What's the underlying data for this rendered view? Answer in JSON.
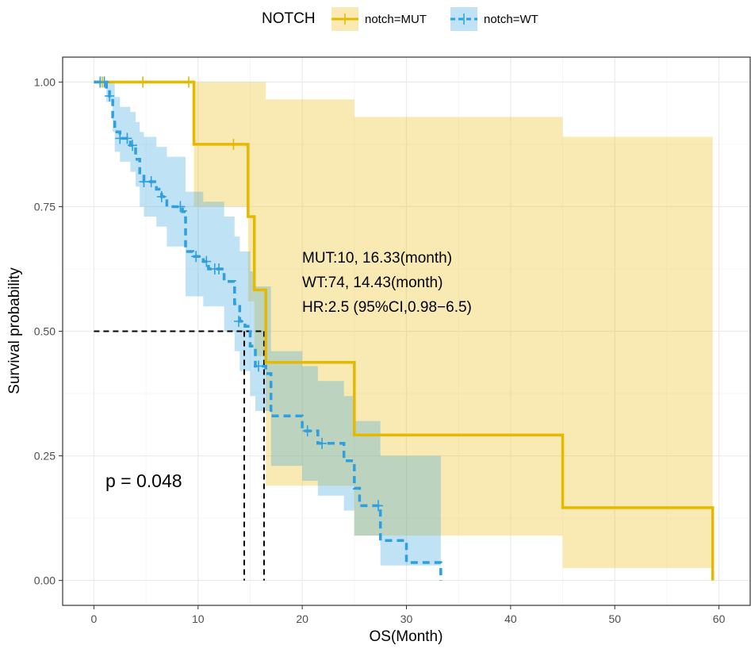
{
  "chart_data": {
    "type": "line",
    "subtype": "kaplan-meier",
    "xlabel": "OS(Month)",
    "ylabel": "Survival probability",
    "xlim": [
      -3,
      63
    ],
    "ylim": [
      -0.05,
      1.05
    ],
    "x_ticks": [
      0,
      10,
      20,
      30,
      40,
      50,
      60
    ],
    "y_ticks": [
      0,
      0.25,
      0.5,
      0.75,
      1.0
    ],
    "x_tick_labels": [
      "0",
      "10",
      "20",
      "30",
      "40",
      "50",
      "60"
    ],
    "y_tick_labels": [
      "0.00",
      "0.25",
      "0.50",
      "0.75",
      "1.00"
    ],
    "grid": true,
    "legend": {
      "title": "NOTCH",
      "position": "top",
      "entries": [
        "notch=MUT",
        "notch=WT"
      ]
    },
    "colors": {
      "MUT": "#E7B800",
      "WT": "#2E9FDF"
    },
    "series": [
      {
        "name": "notch=MUT",
        "linestyle": "solid",
        "steps": [
          [
            0,
            1.0
          ],
          [
            9.6,
            0.875
          ],
          [
            14.8,
            0.73
          ],
          [
            15.4,
            0.583
          ],
          [
            16.5,
            0.4375
          ],
          [
            25.0,
            0.292
          ],
          [
            45.0,
            0.146
          ],
          [
            59.4,
            0.0
          ]
        ],
        "ci": [
          [
            0,
            1.0,
            1.0
          ],
          [
            9.6,
            0.75,
            1.0
          ],
          [
            14.8,
            0.56,
            1.0
          ],
          [
            15.4,
            0.45,
            1.0
          ],
          [
            16.5,
            0.19,
            0.965
          ],
          [
            25.0,
            0.09,
            0.93
          ],
          [
            45.0,
            0.025,
            0.89
          ]
        ],
        "ci_end": 59.4,
        "censors": [
          [
            0.8,
            1.0
          ],
          [
            4.7,
            1.0
          ],
          [
            9.1,
            1.0
          ],
          [
            13.4,
            0.875
          ]
        ]
      },
      {
        "name": "notch=WT",
        "linestyle": "dashed",
        "steps": [
          [
            0,
            1.0
          ],
          [
            1.2,
            0.986
          ],
          [
            1.5,
            0.972
          ],
          [
            1.8,
            0.93
          ],
          [
            2.0,
            0.9
          ],
          [
            2.5,
            0.887
          ],
          [
            3.5,
            0.873
          ],
          [
            4.0,
            0.845
          ],
          [
            4.4,
            0.815
          ],
          [
            4.8,
            0.8
          ],
          [
            6.0,
            0.785
          ],
          [
            6.5,
            0.77
          ],
          [
            7.0,
            0.75
          ],
          [
            8.5,
            0.74
          ],
          [
            8.8,
            0.66
          ],
          [
            9.5,
            0.65
          ],
          [
            10.5,
            0.64
          ],
          [
            11.0,
            0.625
          ],
          [
            12.5,
            0.6
          ],
          [
            13.5,
            0.555
          ],
          [
            14.0,
            0.52
          ],
          [
            14.5,
            0.51
          ],
          [
            15.0,
            0.47
          ],
          [
            15.5,
            0.43
          ],
          [
            16.5,
            0.415
          ],
          [
            17.0,
            0.33
          ],
          [
            20.0,
            0.3
          ],
          [
            21.5,
            0.275
          ],
          [
            24.0,
            0.24
          ],
          [
            25.0,
            0.185
          ],
          [
            25.5,
            0.15
          ],
          [
            27.5,
            0.08
          ],
          [
            30.0,
            0.036
          ],
          [
            33.3,
            0.0
          ]
        ],
        "ci": [
          [
            0,
            1.0,
            1.0
          ],
          [
            1.2,
            0.96,
            1.0
          ],
          [
            1.8,
            0.9,
            1.0
          ],
          [
            2.0,
            0.86,
            0.97
          ],
          [
            2.5,
            0.84,
            0.95
          ],
          [
            3.5,
            0.82,
            0.94
          ],
          [
            4.0,
            0.79,
            0.92
          ],
          [
            4.4,
            0.75,
            0.9
          ],
          [
            4.8,
            0.73,
            0.89
          ],
          [
            6.0,
            0.71,
            0.87
          ],
          [
            7.0,
            0.67,
            0.85
          ],
          [
            8.8,
            0.57,
            0.78
          ],
          [
            10.5,
            0.55,
            0.76
          ],
          [
            12.5,
            0.5,
            0.73
          ],
          [
            13.5,
            0.46,
            0.69
          ],
          [
            14.0,
            0.42,
            0.66
          ],
          [
            15.0,
            0.37,
            0.62
          ],
          [
            15.5,
            0.34,
            0.59
          ],
          [
            17.0,
            0.23,
            0.46
          ],
          [
            20.0,
            0.2,
            0.43
          ],
          [
            21.5,
            0.17,
            0.4
          ],
          [
            24.0,
            0.14,
            0.37
          ],
          [
            25.0,
            0.09,
            0.32
          ],
          [
            27.5,
            0.03,
            0.25
          ]
        ],
        "ci_end": 33.3,
        "censors": [
          [
            0.6,
            1.0
          ],
          [
            1.0,
            1.0
          ],
          [
            1.5,
            0.972
          ],
          [
            2.5,
            0.887
          ],
          [
            3.2,
            0.887
          ],
          [
            3.7,
            0.873
          ],
          [
            4.8,
            0.8
          ],
          [
            5.5,
            0.8
          ],
          [
            6.5,
            0.77
          ],
          [
            8.3,
            0.75
          ],
          [
            9.8,
            0.65
          ],
          [
            10.8,
            0.64
          ],
          [
            11.6,
            0.625
          ],
          [
            12.0,
            0.625
          ],
          [
            13.9,
            0.52
          ],
          [
            15.8,
            0.43
          ],
          [
            20.5,
            0.3
          ],
          [
            21.9,
            0.275
          ],
          [
            27.3,
            0.15
          ]
        ]
      }
    ],
    "median_lines": [
      {
        "series": "notch=WT",
        "x": 14.43
      },
      {
        "series": "notch=MUT",
        "x": 16.33
      }
    ],
    "annotations": [
      "MUT:10, 16.33(month)",
      "WT:74, 14.43(month)",
      "HR:2.5 (95%CI,0.98−6.5)"
    ],
    "pvalue_text": "p = 0.048"
  }
}
